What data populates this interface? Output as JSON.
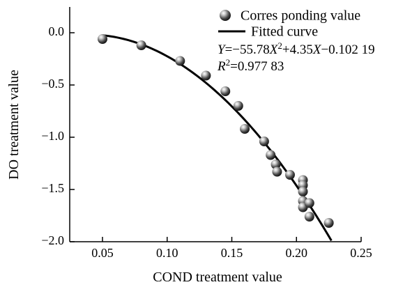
{
  "chart_data": {
    "type": "scatter",
    "title": "",
    "xlabel": "COND treatment value",
    "ylabel": "DO treatment value",
    "xlim": [
      0.03,
      0.25
    ],
    "ylim": [
      -2.0,
      0.2
    ],
    "xticks": [
      0.05,
      0.1,
      0.15,
      0.2,
      0.25
    ],
    "xtick_labels": [
      "0.05",
      "0.10",
      "0.15",
      "0.20",
      "0.25"
    ],
    "yticks": [
      0.0,
      -0.5,
      -1.0,
      -1.5,
      -2.0
    ],
    "ytick_labels": [
      "0.0",
      "−0.5",
      "−1.0",
      "−1.5",
      "−2.0"
    ],
    "grid": false,
    "legend_position": "top-right",
    "series": [
      {
        "name": "Corres ponding value",
        "type": "scatter",
        "x": [
          0.05,
          0.08,
          0.11,
          0.13,
          0.145,
          0.155,
          0.16,
          0.175,
          0.18,
          0.184,
          0.185,
          0.195,
          0.205,
          0.205,
          0.205,
          0.205,
          0.205,
          0.21,
          0.21,
          0.225
        ],
        "y": [
          -0.06,
          -0.12,
          -0.27,
          -0.41,
          -0.56,
          -0.7,
          -0.92,
          -1.04,
          -1.17,
          -1.26,
          -1.33,
          -1.36,
          -1.41,
          -1.46,
          -1.52,
          -1.61,
          -1.67,
          -1.63,
          -1.76,
          -1.82
        ]
      },
      {
        "name": "Fitted curve",
        "type": "line",
        "equation": {
          "a": -55.78,
          "b": 4.35,
          "c": -0.10219
        },
        "x_range": [
          0.05,
          0.225
        ]
      }
    ],
    "annotations": {
      "equation_parts": [
        "Y",
        "=−55.78",
        "X",
        "2",
        "+4.35",
        "X",
        "−0.102 19"
      ],
      "r2_parts": [
        "R",
        "2",
        "=0.977 83"
      ]
    }
  }
}
